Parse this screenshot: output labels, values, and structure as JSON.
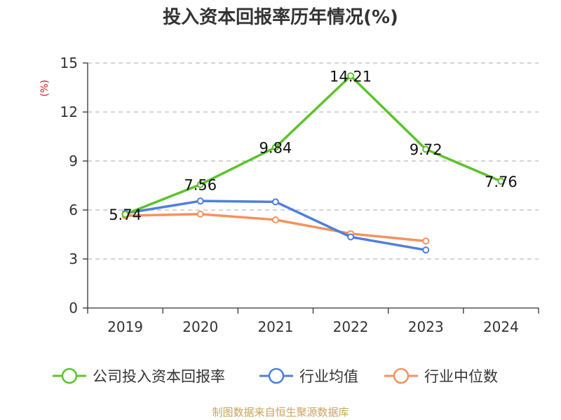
{
  "chart_data": {
    "type": "line",
    "title": "投入资本回报率历年情况(%)",
    "ylabel": "(%)",
    "xlabel": "",
    "categories": [
      "2019",
      "2020",
      "2021",
      "2022",
      "2023",
      "2024"
    ],
    "ylim": [
      0,
      15
    ],
    "yticks": [
      0,
      3,
      6,
      9,
      12,
      15
    ],
    "grid": true,
    "legend_position": "bottom",
    "series": [
      {
        "name": "公司投入资本回报率",
        "color": "#5CC32A",
        "values": [
          5.74,
          7.56,
          9.84,
          14.21,
          9.72,
          7.76
        ],
        "labels": [
          "5.74",
          "7.56",
          "9.84",
          "14.21",
          "9.72",
          "7.76"
        ]
      },
      {
        "name": "行业均值",
        "color": "#4F7FDF",
        "values": [
          5.8,
          6.55,
          6.5,
          4.35,
          3.55,
          null
        ]
      },
      {
        "name": "行业中位数",
        "color": "#F5925E",
        "values": [
          5.65,
          5.75,
          5.4,
          4.55,
          4.1,
          null
        ]
      }
    ]
  },
  "source": {
    "text": "制图数据来自恒生聚源数据库",
    "color": "#C8A45A"
  },
  "unit_color": "#D11F1F"
}
